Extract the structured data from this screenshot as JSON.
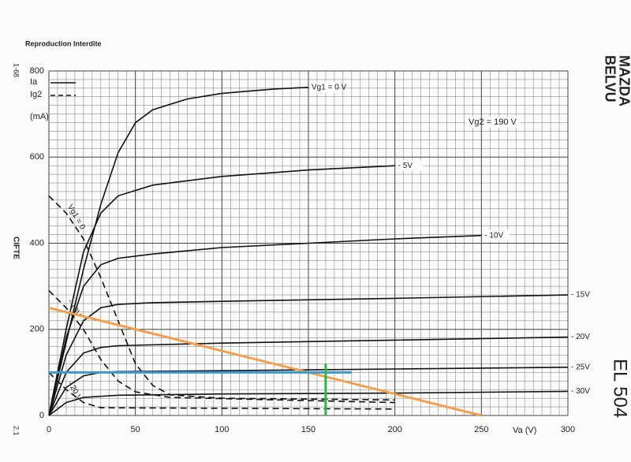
{
  "chart_data": {
    "type": "line",
    "title": "Reproduction Interdite",
    "annotations": [
      "1-68",
      "CIFTE",
      "2.1",
      "MAZDA",
      "BELVU",
      "EL 504",
      "Vg2 = 190 V"
    ],
    "y_label": "(mA)",
    "x_label": "Va (V)",
    "legend_labels": {
      "solid": "Ia",
      "dashed": "Ig2"
    },
    "xlim": [
      0,
      300
    ],
    "ylim": [
      0,
      800
    ],
    "xticks": [
      0,
      50,
      100,
      150,
      200,
      250,
      300
    ],
    "yticks": [
      0,
      200,
      400,
      600,
      800
    ],
    "grid": true,
    "series": [
      {
        "name": "Vg1 = 0 V",
        "color": "#111111",
        "style": "solid",
        "x": [
          0,
          10,
          20,
          30,
          40,
          50,
          60,
          80,
          100,
          130,
          150
        ],
        "values": [
          0,
          170,
          340,
          490,
          610,
          680,
          710,
          735,
          748,
          758,
          762
        ]
      },
      {
        "name": "- 5V",
        "color": "#111111",
        "style": "solid",
        "x": [
          0,
          10,
          20,
          30,
          40,
          60,
          100,
          150,
          200
        ],
        "values": [
          0,
          200,
          380,
          470,
          510,
          535,
          555,
          570,
          580
        ]
      },
      {
        "name": "- 10V",
        "color": "#111111",
        "style": "solid",
        "x": [
          0,
          10,
          20,
          30,
          40,
          60,
          100,
          150,
          200,
          250
        ],
        "values": [
          0,
          180,
          300,
          350,
          365,
          375,
          390,
          400,
          410,
          418
        ]
      },
      {
        "name": "- 15V",
        "color": "#111111",
        "style": "solid",
        "x": [
          0,
          10,
          20,
          30,
          40,
          60,
          100,
          200,
          300
        ],
        "values": [
          0,
          140,
          220,
          250,
          258,
          262,
          265,
          272,
          280
        ]
      },
      {
        "name": "- 20V",
        "color": "#111111",
        "style": "solid",
        "x": [
          0,
          10,
          20,
          30,
          40,
          100,
          200,
          300
        ],
        "values": [
          0,
          100,
          145,
          158,
          162,
          168,
          175,
          182
        ]
      },
      {
        "name": "- 25V",
        "color": "#111111",
        "style": "solid",
        "x": [
          0,
          10,
          20,
          30,
          40,
          100,
          200,
          300
        ],
        "values": [
          0,
          65,
          92,
          100,
          102,
          104,
          108,
          112
        ]
      },
      {
        "name": "- 30V",
        "color": "#111111",
        "style": "solid",
        "x": [
          0,
          10,
          20,
          40,
          100,
          200,
          300
        ],
        "values": [
          0,
          30,
          42,
          47,
          50,
          52,
          56
        ]
      },
      {
        "name": "Vg1 = 0",
        "color": "#111111",
        "style": "dashed",
        "x": [
          0,
          10,
          20,
          30,
          40,
          50,
          60,
          70,
          100,
          200
        ],
        "values": [
          510,
          470,
          410,
          320,
          220,
          120,
          70,
          48,
          40,
          36
        ]
      },
      {
        "name": "- 10V",
        "color": "#111111",
        "style": "dashed",
        "x": [
          0,
          10,
          20,
          30,
          40,
          50,
          70,
          200
        ],
        "values": [
          290,
          250,
          200,
          130,
          80,
          55,
          42,
          30
        ]
      },
      {
        "name": "- 20 V",
        "color": "#111111",
        "style": "dashed",
        "x": [
          0,
          10,
          20,
          30,
          200
        ],
        "values": [
          100,
          60,
          30,
          18,
          15
        ]
      }
    ],
    "lines": [
      {
        "color": "#f0a050",
        "x": [
          0,
          250
        ],
        "values": [
          250,
          0
        ]
      },
      {
        "color": "#3a9ad0",
        "x": [
          0,
          175
        ],
        "values": [
          100,
          100
        ]
      },
      {
        "color": "#2bb54a",
        "x": [
          160,
          160
        ],
        "values": [
          0,
          120
        ]
      }
    ]
  }
}
